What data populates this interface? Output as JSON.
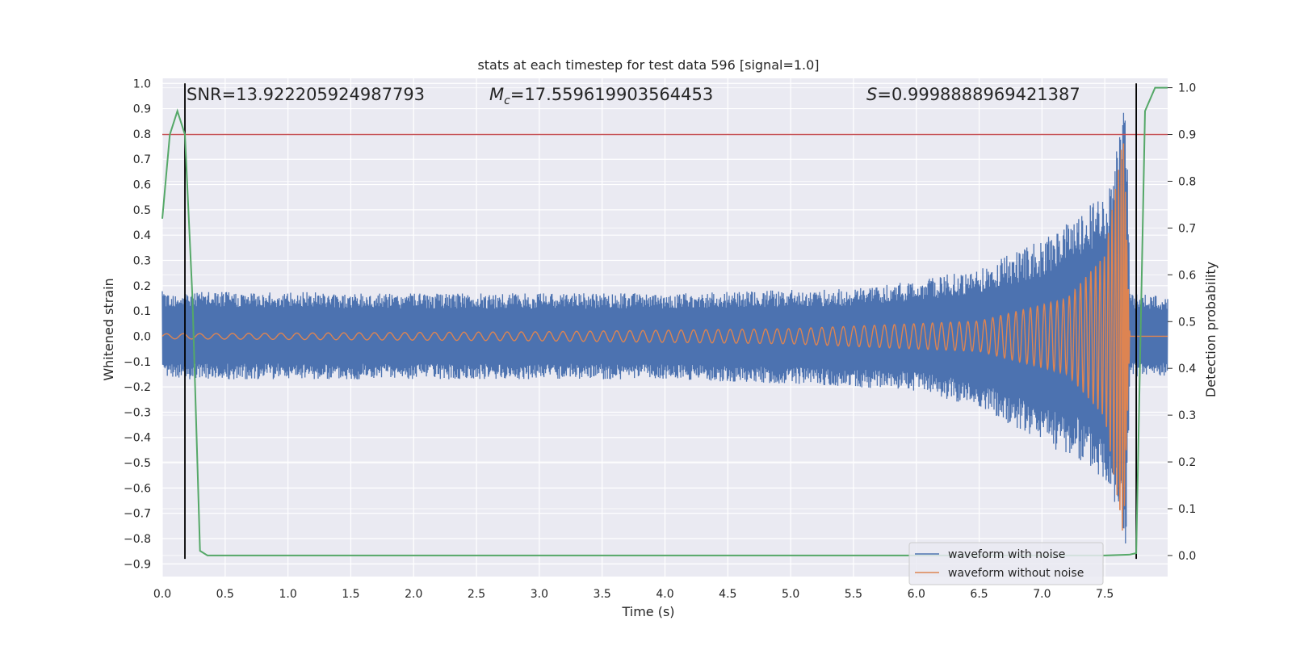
{
  "chart_data": {
    "type": "line",
    "title": "stats at each timestep for test data 596 [signal=1.0]",
    "xlabel": "Time (s)",
    "ylabel_left": "Whitened strain",
    "ylabel_right": "Detection probability",
    "xlim": [
      0.0,
      8.0
    ],
    "ylim_left": [
      -0.95,
      1.02
    ],
    "ylim_right": [
      -0.045,
      1.02
    ],
    "x_ticks": [
      "0.0",
      "0.5",
      "1.0",
      "1.5",
      "2.0",
      "2.5",
      "3.0",
      "3.5",
      "4.0",
      "4.5",
      "5.0",
      "5.5",
      "6.0",
      "6.5",
      "7.0",
      "7.5"
    ],
    "y_ticks_left": [
      "1.0",
      "0.9",
      "0.8",
      "0.7",
      "0.6",
      "0.5",
      "0.4",
      "0.3",
      "0.2",
      "0.1",
      "0.0",
      "−0.1",
      "−0.2",
      "−0.3",
      "−0.4",
      "−0.5",
      "−0.6",
      "−0.7",
      "−0.8",
      "−0.9"
    ],
    "y_ticks_right": [
      "1.0",
      "0.9",
      "0.8",
      "0.7",
      "0.6",
      "0.5",
      "0.4",
      "0.3",
      "0.2",
      "0.1",
      "0.0"
    ],
    "grid": true,
    "annotations": {
      "snr": "SNR=13.922205924987793",
      "mc_symbol": "M",
      "mc_sub": "c",
      "mc_value": "=17.559619903564453",
      "s_symbol": "S",
      "s_value": "=0.9998888969421387"
    },
    "legend": {
      "placement": "lower-right",
      "entries": [
        {
          "label": "waveform with noise",
          "color": "#4c72b0"
        },
        {
          "label": "waveform without noise",
          "color": "#dd8452"
        }
      ]
    },
    "series": [
      {
        "name": "waveform with noise",
        "color": "#4c72b0",
        "axis": "left",
        "envelope": [
          {
            "x": 0.0,
            "upper": 0.18,
            "lower": -0.17
          },
          {
            "x": 2.0,
            "upper": 0.17,
            "lower": -0.17
          },
          {
            "x": 4.0,
            "upper": 0.17,
            "lower": -0.17
          },
          {
            "x": 5.5,
            "upper": 0.19,
            "lower": -0.2
          },
          {
            "x": 6.0,
            "upper": 0.22,
            "lower": -0.22
          },
          {
            "x": 6.5,
            "upper": 0.27,
            "lower": -0.28
          },
          {
            "x": 7.0,
            "upper": 0.38,
            "lower": -0.42
          },
          {
            "x": 7.3,
            "upper": 0.48,
            "lower": -0.5
          },
          {
            "x": 7.55,
            "upper": 0.62,
            "lower": -0.6
          },
          {
            "x": 7.67,
            "upper": 1.0,
            "lower": -0.88
          },
          {
            "x": 7.7,
            "upper": 0.17,
            "lower": -0.16
          },
          {
            "x": 8.0,
            "upper": 0.16,
            "lower": -0.16
          }
        ]
      },
      {
        "name": "waveform without noise",
        "color": "#dd8452",
        "axis": "left",
        "envelope": [
          {
            "x": 0.0,
            "amplitude": 0.01
          },
          {
            "x": 3.0,
            "amplitude": 0.018
          },
          {
            "x": 5.0,
            "amplitude": 0.03
          },
          {
            "x": 6.5,
            "amplitude": 0.06
          },
          {
            "x": 7.2,
            "amplitude": 0.15
          },
          {
            "x": 7.5,
            "amplitude": 0.32
          },
          {
            "x": 7.65,
            "amplitude": 0.8
          },
          {
            "x": 7.7,
            "amplitude": 0.0
          },
          {
            "x": 8.0,
            "amplitude": 0.0
          }
        ]
      },
      {
        "color": "#55a868",
        "axis": "right",
        "x": [
          0.0,
          0.06,
          0.12,
          0.18,
          0.24,
          0.3,
          0.36,
          0.5,
          1.0,
          2.0,
          3.0,
          4.0,
          5.0,
          6.0,
          7.0,
          7.5,
          7.7,
          7.75,
          7.82,
          7.9,
          8.0
        ],
        "y": [
          0.72,
          0.9,
          0.95,
          0.9,
          0.55,
          0.01,
          0.0,
          0.0,
          0.0,
          0.0,
          0.0,
          0.0,
          0.0,
          0.0,
          0.0,
          0.0,
          0.002,
          0.005,
          0.95,
          1.0,
          1.0
        ]
      }
    ],
    "reference_lines": {
      "threshold_right": 0.9,
      "threshold_color": "#c44e52",
      "vertical_x": [
        0.18,
        7.75
      ],
      "vertical_color": "#000000"
    }
  }
}
